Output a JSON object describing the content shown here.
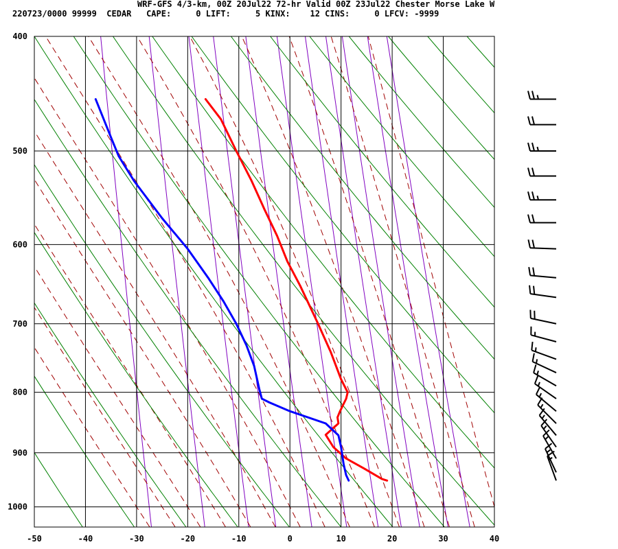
{
  "header": {
    "title": "WRF-GFS 4/3-km, 00Z 20Jul22 72-hr Valid 00Z 23Jul22 Chester Morse Lake W",
    "indices": "220723/0000 99999  CEDAR   CAPE:     0 LIFT:     5 KINX:    12 CINS:     0 LFCV: -9999"
  },
  "colors": {
    "temperature": "#ff0000",
    "dewpoint": "#0000ff",
    "isotherm": "#000000",
    "dry_adiabat": "#008000",
    "moist_adiabat": "#a00000",
    "mixing_ratio": "#8000c0",
    "wind_barb": "#000000"
  },
  "chart_data": {
    "type": "skew-t",
    "title": "WRF-GFS 4/3-km, 00Z 20Jul22 72-hr Valid 00Z 23Jul22 Chester Morse Lake W",
    "xlabel": "",
    "ylabel": "",
    "x_ticks": [
      -50,
      -40,
      -30,
      -20,
      -10,
      0,
      10,
      20,
      30,
      40
    ],
    "y_ticks": [
      400,
      500,
      600,
      700,
      800,
      900,
      1000
    ],
    "xlim": [
      -50,
      40
    ],
    "ylim_hpa": [
      1040,
      400
    ],
    "grid": true,
    "series": [
      {
        "x": [
          19.0,
          18.0,
          14.5,
          11.0,
          8.5,
          7.0,
          9.5,
          9.3,
          9.8,
          11.0,
          11.3,
          10.0,
          8.0,
          5.5,
          2.0,
          -0.5,
          -2.5,
          -5.0,
          -7.5,
          -10.5,
          -13.5,
          -16.5
        ],
        "y": [
          950,
          947,
          928,
          910,
          890,
          869,
          850,
          840,
          830,
          810,
          800,
          780,
          740,
          700,
          650,
          620,
          590,
          560,
          530,
          500,
          470,
          452
        ]
      },
      {
        "x": [
          11.5,
          11.0,
          10.5,
          10.0,
          9.5,
          7.0,
          0.0,
          -4.0,
          -5.5,
          -6.0,
          -7.0,
          -8.5,
          -10.5,
          -13.0,
          -16.0,
          -20.0,
          -25.0,
          -30.5,
          -33.5,
          -35.0,
          -38.0
        ],
        "y": [
          950,
          940,
          920,
          890,
          870,
          850,
          830,
          816,
          810,
          795,
          760,
          730,
          700,
          670,
          640,
          605,
          570,
          530,
          505,
          487,
          452
        ]
      }
    ],
    "wind_barbs": [
      {
        "p": 452,
        "dir": 270,
        "kt": 25
      },
      {
        "p": 475,
        "dir": 270,
        "kt": 20
      },
      {
        "p": 500,
        "dir": 270,
        "kt": 25
      },
      {
        "p": 525,
        "dir": 270,
        "kt": 20
      },
      {
        "p": 550,
        "dir": 270,
        "kt": 25
      },
      {
        "p": 575,
        "dir": 270,
        "kt": 20
      },
      {
        "p": 605,
        "dir": 272,
        "kt": 20
      },
      {
        "p": 640,
        "dir": 275,
        "kt": 20
      },
      {
        "p": 665,
        "dir": 278,
        "kt": 20
      },
      {
        "p": 700,
        "dir": 282,
        "kt": 20
      },
      {
        "p": 725,
        "dir": 285,
        "kt": 15
      },
      {
        "p": 750,
        "dir": 290,
        "kt": 15
      },
      {
        "p": 770,
        "dir": 295,
        "kt": 15
      },
      {
        "p": 790,
        "dir": 300,
        "kt": 15
      },
      {
        "p": 810,
        "dir": 305,
        "kt": 15
      },
      {
        "p": 830,
        "dir": 310,
        "kt": 15
      },
      {
        "p": 850,
        "dir": 315,
        "kt": 15
      },
      {
        "p": 870,
        "dir": 320,
        "kt": 15
      },
      {
        "p": 890,
        "dir": 325,
        "kt": 15
      },
      {
        "p": 910,
        "dir": 330,
        "kt": 15
      },
      {
        "p": 935,
        "dir": 335,
        "kt": 15
      },
      {
        "p": 950,
        "dir": 340,
        "kt": 15
      }
    ]
  }
}
